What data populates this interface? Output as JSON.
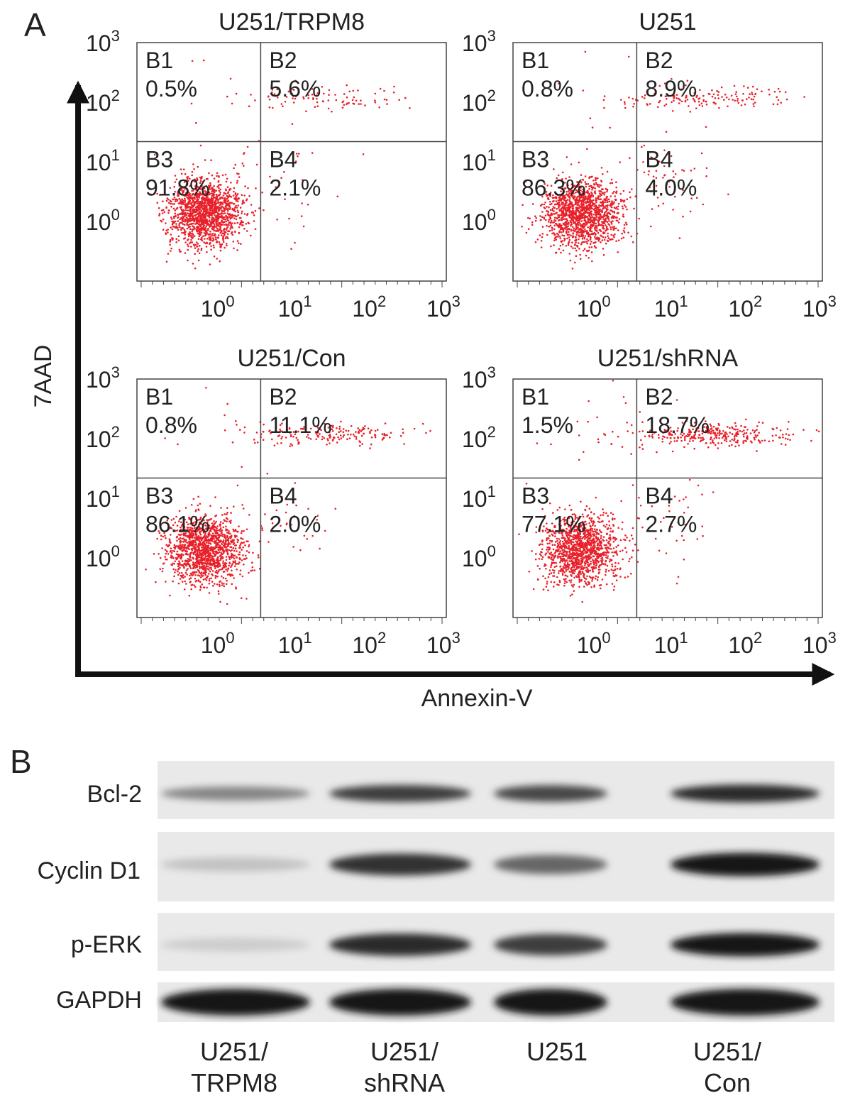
{
  "panel_a": {
    "letter": "A",
    "y_axis_label": "7AAD",
    "x_axis_label": "Annexin-V",
    "tick_labels": [
      "10",
      "10",
      "10",
      "10"
    ],
    "tick_exponents": [
      "0",
      "1",
      "2",
      "3"
    ],
    "plots": [
      {
        "title": "U251/TRPM8",
        "quadrants": [
          {
            "label": "B1",
            "value": "0.5%"
          },
          {
            "label": "B2",
            "value": "5.6%"
          },
          {
            "label": "B3",
            "value": "91.8%"
          },
          {
            "label": "B4",
            "value": "2.1%"
          }
        ]
      },
      {
        "title": "U251",
        "quadrants": [
          {
            "label": "B1",
            "value": "0.8%"
          },
          {
            "label": "B2",
            "value": "8.9%"
          },
          {
            "label": "B3",
            "value": "86.3%"
          },
          {
            "label": "B4",
            "value": "4.0%"
          }
        ]
      },
      {
        "title": "U251/Con",
        "quadrants": [
          {
            "label": "B1",
            "value": "0.8%"
          },
          {
            "label": "B2",
            "value": "11.1%"
          },
          {
            "label": "B3",
            "value": "86.1%"
          },
          {
            "label": "B4",
            "value": "2.0%"
          }
        ]
      },
      {
        "title": "U251/shRNA",
        "quadrants": [
          {
            "label": "B1",
            "value": "1.5%"
          },
          {
            "label": "B2",
            "value": "18.7%"
          },
          {
            "label": "B3",
            "value": "77.1%"
          },
          {
            "label": "B4",
            "value": "2.7%"
          }
        ]
      }
    ]
  },
  "panel_b": {
    "letter": "B",
    "rows": [
      "Bcl-2",
      "Cyclin D1",
      "p-ERK",
      "GAPDH"
    ],
    "lanes": [
      "U251/\nTRPM8",
      "U251/\nshRNA",
      "U251",
      "U251/\nCon"
    ],
    "band_intensity": [
      [
        0.45,
        0.8,
        0.75,
        0.9
      ],
      [
        0.15,
        0.85,
        0.6,
        1.0
      ],
      [
        0.1,
        0.9,
        0.8,
        1.0
      ],
      [
        1.0,
        1.0,
        1.0,
        1.0
      ]
    ]
  },
  "colors": {
    "dots": "#e8202a",
    "axis": "#111111",
    "frame": "#444444"
  }
}
